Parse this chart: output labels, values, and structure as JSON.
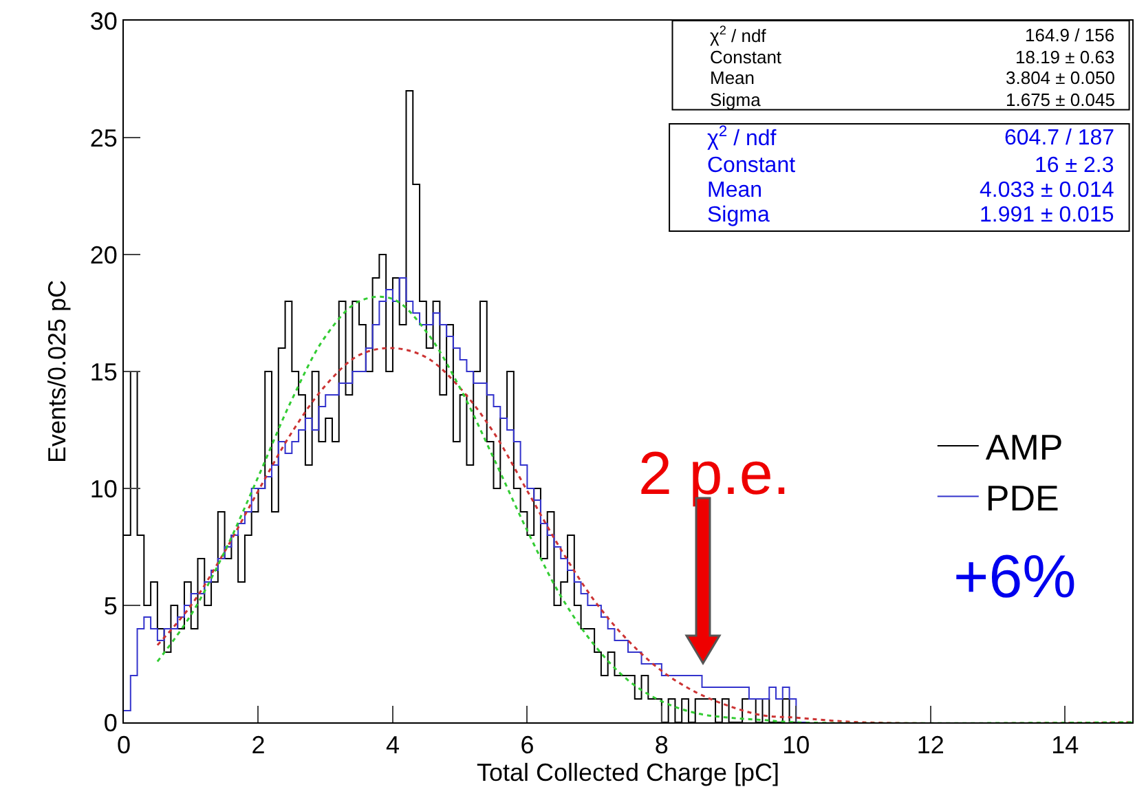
{
  "chart_data": {
    "type": "histogram",
    "xlabel": "Total Collected Charge [pC]",
    "ylabel": "Events/0.025 pC",
    "bins": [
      0,
      0.1,
      0.2,
      0.3,
      0.4,
      0.5,
      0.6,
      0.7,
      0.8,
      0.9,
      1,
      1.1,
      1.2,
      1.3,
      1.4,
      1.5,
      1.6,
      1.7,
      1.8,
      1.9,
      2,
      2.1,
      2.2,
      2.3,
      2.4,
      2.5,
      2.6,
      2.7,
      2.8,
      2.9,
      3,
      3.1,
      3.2,
      3.3,
      3.4,
      3.5,
      3.6,
      3.7,
      3.8,
      3.9,
      4,
      4.1,
      4.2,
      4.3,
      4.4,
      4.5,
      4.6,
      4.7,
      4.8,
      4.9,
      5,
      5.1,
      5.2,
      5.3,
      5.4,
      5.5,
      5.6,
      5.7,
      5.8,
      5.9,
      6,
      6.1,
      6.2,
      6.3,
      6.4,
      6.5,
      6.6,
      6.7,
      6.8,
      6.9,
      7,
      7.1,
      7.2,
      7.3,
      7.4,
      7.5,
      7.6,
      7.7,
      7.8,
      7.9,
      8,
      8.1,
      8.2,
      8.3,
      8.4,
      8.5,
      8.6,
      8.7,
      8.8,
      8.9,
      9,
      9.1,
      9.2,
      9.3,
      9.4,
      9.5,
      9.6,
      9.7,
      9.8,
      9.9,
      10,
      10.1,
      10.2
    ],
    "series": [
      {
        "name": "AMP",
        "color": "#000000",
        "values": [
          8,
          15,
          8,
          5,
          6,
          4,
          3,
          5,
          4,
          6,
          4,
          7,
          5,
          6,
          9,
          7,
          8,
          6,
          8,
          9,
          10,
          15,
          9,
          16,
          18,
          15,
          14,
          11,
          15,
          12,
          13,
          12,
          18,
          14,
          18,
          17,
          15,
          19,
          20,
          15,
          19,
          17,
          27,
          23,
          18,
          16,
          18,
          14,
          17,
          12,
          14,
          11,
          15,
          18,
          12,
          10,
          13,
          15,
          10,
          9,
          8,
          10,
          7,
          9,
          5,
          6,
          8,
          5,
          4,
          4,
          3,
          2,
          3,
          2,
          2,
          2,
          1,
          2,
          1,
          1,
          0,
          1,
          0,
          1,
          0,
          1,
          1,
          1,
          0,
          1,
          0,
          0,
          1,
          1,
          0,
          1,
          0,
          0,
          1,
          0,
          0,
          0
        ]
      },
      {
        "name": "PDE",
        "color": "#3333cc",
        "values": [
          0.5,
          2,
          4,
          4.5,
          4,
          3.5,
          4,
          4,
          4.5,
          5,
          5.5,
          5.5,
          6,
          6.5,
          7,
          7.5,
          8,
          8.5,
          9,
          10,
          10,
          10.5,
          11,
          12,
          11.5,
          12,
          12.5,
          13,
          12.5,
          13.5,
          14,
          14,
          14.5,
          14.5,
          15,
          15,
          16,
          17,
          18,
          18.5,
          18,
          19,
          18,
          17.5,
          17,
          17,
          17.5,
          17,
          16.5,
          16,
          15.5,
          15,
          14.5,
          14.5,
          14,
          13.5,
          13,
          12.5,
          12,
          11,
          10,
          9.5,
          8.5,
          8,
          7.5,
          7,
          6.5,
          6,
          5.5,
          5,
          5,
          4.5,
          4,
          3.5,
          3.5,
          3,
          3,
          2.5,
          2.5,
          2.5,
          2,
          2,
          2,
          2,
          2,
          2,
          1.5,
          1.5,
          1.5,
          1.5,
          1.5,
          1.5,
          1.5,
          1,
          1,
          1,
          1.5,
          1,
          1.5,
          1,
          0,
          0
        ]
      },
      {
        "type": "line",
        "color": "#cc3333",
        "line_style": "dotted",
        "x": [
          0.5,
          1,
          1.5,
          2,
          2.5,
          3,
          3.5,
          4,
          4.5,
          5,
          5.5,
          6,
          6.5,
          7,
          7.5,
          8,
          8.5,
          9,
          9.5,
          10,
          11,
          15
        ],
        "values": [
          3.3,
          5.0,
          7.3,
          9.9,
          12.4,
          14.4,
          15.7,
          16.0,
          15.6,
          14.3,
          12.4,
          9.9,
          7.4,
          5.2,
          3.5,
          2.2,
          1.3,
          0.7,
          0.3,
          0.2,
          0,
          0
        ]
      },
      {
        "type": "line",
        "color": "#33cc33",
        "line_style": "dotted",
        "x": [
          0.5,
          1,
          1.5,
          2,
          2.5,
          3,
          3.5,
          4,
          4.5,
          5,
          5.5,
          6,
          6.5,
          7,
          7.5,
          8,
          8.5,
          9,
          9.5,
          10,
          15
        ],
        "values": [
          2.6,
          4.6,
          7.3,
          10.5,
          13.8,
          16.5,
          18.0,
          18.1,
          16.7,
          14.3,
          11.3,
          8.2,
          5.4,
          3.3,
          1.8,
          0.9,
          0.4,
          0.2,
          0.1,
          0,
          0
        ]
      }
    ],
    "xlim": [
      0,
      15
    ],
    "xticks": [
      0,
      2,
      4,
      6,
      8,
      10,
      12,
      14
    ],
    "ylim": [
      0,
      30
    ],
    "yticks": [
      0,
      5,
      10,
      15,
      20,
      25,
      30
    ],
    "grid": false,
    "legend": "right",
    "marker": "none",
    "annotations": [
      "χ$^{2}$ / ndf",
      "164.9 / 156",
      "Constant",
      "18.19 ± 0.63",
      "Mean",
      "3.804 ± 0.050",
      "Sigma",
      "1.675 ± 0.045",
      "χ$^{2}$ / ndf",
      "604.7 / 187",
      "Constant",
      "16 ± 2.3",
      "Mean",
      "4.033 ± 0.014",
      "Sigma",
      "1.991 ± 0.015",
      "2 p.e.",
      "+6%"
    ]
  }
}
